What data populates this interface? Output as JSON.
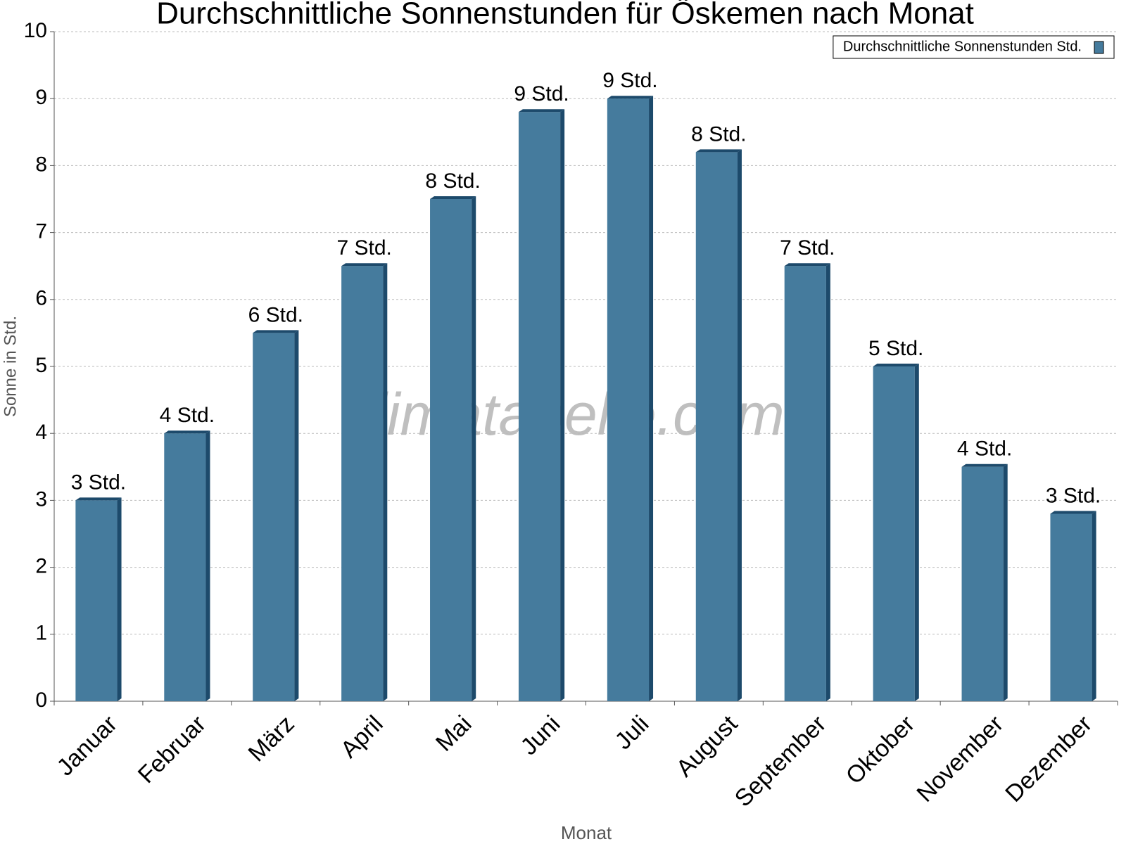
{
  "chart_data": {
    "type": "bar",
    "title": "Durchschnittliche Sonnenstunden für Öskemen nach Monat",
    "x_label": "Monat",
    "y_label": "Sonne in Std.",
    "watermark": "klimatabelle.com",
    "categories": [
      "Januar",
      "Februar",
      "März",
      "April",
      "Mai",
      "Juni",
      "Juli",
      "August",
      "September",
      "Oktober",
      "November",
      "Dezember"
    ],
    "series": [
      {
        "name": "Durchschnittliche Sonnenstunden Std.",
        "color": "#457b9d",
        "values": [
          3.0,
          4.0,
          5.5,
          6.5,
          7.5,
          8.8,
          9.0,
          8.2,
          6.5,
          5.0,
          3.5,
          2.8
        ],
        "value_labels": [
          "3 Std.",
          "4 Std.",
          "6 Std.",
          "7 Std.",
          "8 Std.",
          "9 Std.",
          "9 Std.",
          "8 Std.",
          "7 Std.",
          "5 Std.",
          "4 Std.",
          "3 Std."
        ]
      }
    ],
    "ylim": [
      0,
      10
    ],
    "yticks": [
      0,
      1,
      2,
      3,
      4,
      5,
      6,
      7,
      8,
      9,
      10
    ],
    "grid": true,
    "legend": "upper right"
  }
}
